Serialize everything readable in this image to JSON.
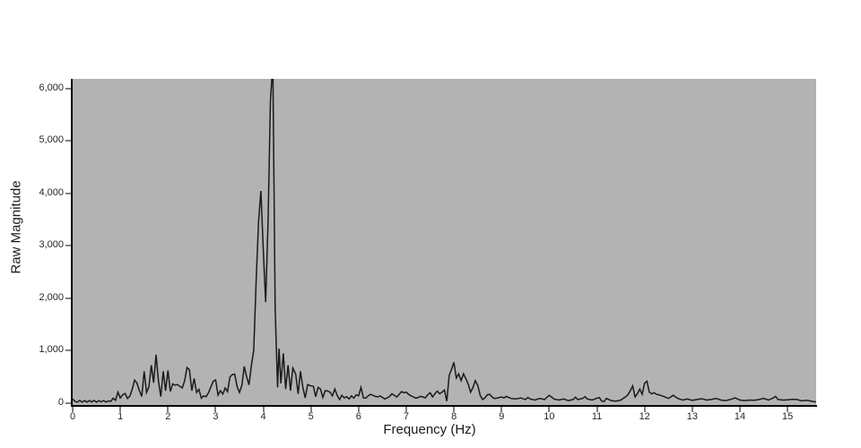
{
  "chart_data": {
    "type": "line",
    "title": "",
    "xlabel": "Frequency (Hz)",
    "ylabel": "Raw Magnitude",
    "xlim": [
      0,
      15.6
    ],
    "ylim": [
      0,
      6188
    ],
    "grid": false,
    "legend": false,
    "plot_bg_color": "#b3b3b3",
    "line_color": "#1a1a1a",
    "axis_color": "#000000",
    "tick_color": "#808080",
    "text_color": "#262626",
    "x_ticks": [
      {
        "value": 0,
        "label": "0"
      },
      {
        "value": 1,
        "label": "1"
      },
      {
        "value": 2,
        "label": "2"
      },
      {
        "value": 3,
        "label": "3"
      },
      {
        "value": 4,
        "label": "4"
      },
      {
        "value": 5,
        "label": "5"
      },
      {
        "value": 6,
        "label": "6"
      },
      {
        "value": 7,
        "label": "7"
      },
      {
        "value": 8,
        "label": "8"
      },
      {
        "value": 9,
        "label": "9"
      },
      {
        "value": 10,
        "label": "10"
      },
      {
        "value": 11,
        "label": "11"
      },
      {
        "value": 12,
        "label": "12"
      },
      {
        "value": 13,
        "label": "13"
      },
      {
        "value": 14,
        "label": "14"
      },
      {
        "value": 15,
        "label": "15"
      }
    ],
    "y_ticks": [
      {
        "value": 0,
        "label": "0"
      },
      {
        "value": 1000,
        "label": "1,000"
      },
      {
        "value": 2000,
        "label": "2,000"
      },
      {
        "value": 3000,
        "label": "3,000"
      },
      {
        "value": 4000,
        "label": "4,000"
      },
      {
        "value": 5000,
        "label": "5,000"
      },
      {
        "value": 6000,
        "label": "6,000"
      }
    ],
    "peak_clipped_at_x": 4.2,
    "points": [
      [
        0.0,
        80
      ],
      [
        0.05,
        35
      ],
      [
        0.1,
        20
      ],
      [
        0.15,
        55
      ],
      [
        0.2,
        18
      ],
      [
        0.25,
        52
      ],
      [
        0.3,
        20
      ],
      [
        0.35,
        50
      ],
      [
        0.4,
        22
      ],
      [
        0.45,
        55
      ],
      [
        0.5,
        20
      ],
      [
        0.55,
        48
      ],
      [
        0.6,
        25
      ],
      [
        0.65,
        52
      ],
      [
        0.7,
        20
      ],
      [
        0.75,
        45
      ],
      [
        0.8,
        35
      ],
      [
        0.85,
        95
      ],
      [
        0.9,
        55
      ],
      [
        0.95,
        210
      ],
      [
        1.0,
        100
      ],
      [
        1.05,
        160
      ],
      [
        1.1,
        185
      ],
      [
        1.15,
        90
      ],
      [
        1.2,
        135
      ],
      [
        1.25,
        265
      ],
      [
        1.3,
        440
      ],
      [
        1.35,
        385
      ],
      [
        1.4,
        240
      ],
      [
        1.45,
        130
      ],
      [
        1.5,
        610
      ],
      [
        1.55,
        205
      ],
      [
        1.6,
        310
      ],
      [
        1.65,
        725
      ],
      [
        1.7,
        390
      ],
      [
        1.75,
        925
      ],
      [
        1.8,
        420
      ],
      [
        1.85,
        125
      ],
      [
        1.9,
        610
      ],
      [
        1.95,
        240
      ],
      [
        2.0,
        625
      ],
      [
        2.05,
        225
      ],
      [
        2.1,
        370
      ],
      [
        2.15,
        345
      ],
      [
        2.2,
        355
      ],
      [
        2.25,
        320
      ],
      [
        2.3,
        290
      ],
      [
        2.35,
        430
      ],
      [
        2.4,
        680
      ],
      [
        2.45,
        640
      ],
      [
        2.5,
        240
      ],
      [
        2.55,
        470
      ],
      [
        2.6,
        205
      ],
      [
        2.65,
        265
      ],
      [
        2.7,
        95
      ],
      [
        2.75,
        140
      ],
      [
        2.8,
        125
      ],
      [
        2.85,
        200
      ],
      [
        2.9,
        310
      ],
      [
        2.95,
        420
      ],
      [
        3.0,
        445
      ],
      [
        3.05,
        155
      ],
      [
        3.1,
        240
      ],
      [
        3.15,
        175
      ],
      [
        3.2,
        290
      ],
      [
        3.25,
        220
      ],
      [
        3.3,
        500
      ],
      [
        3.35,
        545
      ],
      [
        3.4,
        555
      ],
      [
        3.45,
        320
      ],
      [
        3.5,
        205
      ],
      [
        3.55,
        340
      ],
      [
        3.6,
        700
      ],
      [
        3.65,
        500
      ],
      [
        3.7,
        350
      ],
      [
        3.75,
        720
      ],
      [
        3.8,
        1010
      ],
      [
        3.85,
        2330
      ],
      [
        3.9,
        3470
      ],
      [
        3.95,
        4050
      ],
      [
        4.0,
        2900
      ],
      [
        4.05,
        1930
      ],
      [
        4.1,
        3470
      ],
      [
        4.15,
        5760
      ],
      [
        4.2,
        6500
      ],
      [
        4.25,
        1810
      ],
      [
        4.3,
        300
      ],
      [
        4.33,
        1040
      ],
      [
        4.37,
        380
      ],
      [
        4.42,
        950
      ],
      [
        4.47,
        270
      ],
      [
        4.52,
        725
      ],
      [
        4.57,
        240
      ],
      [
        4.62,
        670
      ],
      [
        4.68,
        555
      ],
      [
        4.73,
        180
      ],
      [
        4.78,
        610
      ],
      [
        4.83,
        300
      ],
      [
        4.88,
        100
      ],
      [
        4.93,
        355
      ],
      [
        5.0,
        330
      ],
      [
        5.05,
        325
      ],
      [
        5.1,
        125
      ],
      [
        5.15,
        300
      ],
      [
        5.2,
        270
      ],
      [
        5.25,
        110
      ],
      [
        5.3,
        240
      ],
      [
        5.35,
        230
      ],
      [
        5.4,
        210
      ],
      [
        5.45,
        140
      ],
      [
        5.5,
        270
      ],
      [
        5.55,
        150
      ],
      [
        5.6,
        70
      ],
      [
        5.65,
        150
      ],
      [
        5.7,
        100
      ],
      [
        5.75,
        125
      ],
      [
        5.8,
        80
      ],
      [
        5.85,
        140
      ],
      [
        5.9,
        95
      ],
      [
        5.95,
        160
      ],
      [
        6.0,
        140
      ],
      [
        6.05,
        300
      ],
      [
        6.1,
        100
      ],
      [
        6.15,
        95
      ],
      [
        6.2,
        140
      ],
      [
        6.25,
        170
      ],
      [
        6.3,
        150
      ],
      [
        6.35,
        130
      ],
      [
        6.4,
        120
      ],
      [
        6.45,
        140
      ],
      [
        6.5,
        110
      ],
      [
        6.55,
        80
      ],
      [
        6.6,
        100
      ],
      [
        6.65,
        130
      ],
      [
        6.7,
        180
      ],
      [
        6.75,
        150
      ],
      [
        6.8,
        120
      ],
      [
        6.85,
        170
      ],
      [
        6.9,
        220
      ],
      [
        6.95,
        200
      ],
      [
        7.0,
        210
      ],
      [
        7.05,
        170
      ],
      [
        7.1,
        140
      ],
      [
        7.15,
        120
      ],
      [
        7.2,
        95
      ],
      [
        7.25,
        110
      ],
      [
        7.3,
        130
      ],
      [
        7.35,
        120
      ],
      [
        7.4,
        100
      ],
      [
        7.45,
        160
      ],
      [
        7.5,
        200
      ],
      [
        7.55,
        120
      ],
      [
        7.6,
        180
      ],
      [
        7.65,
        230
      ],
      [
        7.7,
        180
      ],
      [
        7.75,
        210
      ],
      [
        7.8,
        250
      ],
      [
        7.85,
        40
      ],
      [
        7.9,
        530
      ],
      [
        7.95,
        650
      ],
      [
        8.0,
        780
      ],
      [
        8.05,
        480
      ],
      [
        8.1,
        560
      ],
      [
        8.15,
        430
      ],
      [
        8.2,
        560
      ],
      [
        8.25,
        470
      ],
      [
        8.3,
        360
      ],
      [
        8.35,
        210
      ],
      [
        8.4,
        300
      ],
      [
        8.45,
        430
      ],
      [
        8.5,
        340
      ],
      [
        8.55,
        150
      ],
      [
        8.6,
        70
      ],
      [
        8.65,
        100
      ],
      [
        8.7,
        160
      ],
      [
        8.75,
        170
      ],
      [
        8.8,
        120
      ],
      [
        8.85,
        90
      ],
      [
        8.9,
        95
      ],
      [
        8.95,
        110
      ],
      [
        9.0,
        120
      ],
      [
        9.05,
        100
      ],
      [
        9.1,
        130
      ],
      [
        9.15,
        110
      ],
      [
        9.2,
        90
      ],
      [
        9.3,
        80
      ],
      [
        9.4,
        100
      ],
      [
        9.5,
        70
      ],
      [
        9.55,
        110
      ],
      [
        9.6,
        80
      ],
      [
        9.7,
        60
      ],
      [
        9.8,
        90
      ],
      [
        9.9,
        70
      ],
      [
        10.0,
        150
      ],
      [
        10.1,
        80
      ],
      [
        10.2,
        60
      ],
      [
        10.3,
        80
      ],
      [
        10.4,
        50
      ],
      [
        10.5,
        70
      ],
      [
        10.55,
        115
      ],
      [
        10.6,
        70
      ],
      [
        10.7,
        90
      ],
      [
        10.75,
        125
      ],
      [
        10.8,
        80
      ],
      [
        10.9,
        60
      ],
      [
        11.0,
        95
      ],
      [
        11.05,
        110
      ],
      [
        11.1,
        40
      ],
      [
        11.15,
        30
      ],
      [
        11.2,
        90
      ],
      [
        11.3,
        50
      ],
      [
        11.4,
        40
      ],
      [
        11.5,
        60
      ],
      [
        11.6,
        120
      ],
      [
        11.65,
        160
      ],
      [
        11.7,
        240
      ],
      [
        11.75,
        330
      ],
      [
        11.8,
        120
      ],
      [
        11.85,
        180
      ],
      [
        11.9,
        270
      ],
      [
        11.95,
        170
      ],
      [
        12.0,
        380
      ],
      [
        12.05,
        420
      ],
      [
        12.1,
        210
      ],
      [
        12.15,
        180
      ],
      [
        12.2,
        200
      ],
      [
        12.25,
        170
      ],
      [
        12.3,
        160
      ],
      [
        12.4,
        130
      ],
      [
        12.5,
        90
      ],
      [
        12.6,
        150
      ],
      [
        12.7,
        90
      ],
      [
        12.8,
        60
      ],
      [
        12.9,
        80
      ],
      [
        13.0,
        55
      ],
      [
        13.1,
        70
      ],
      [
        13.2,
        85
      ],
      [
        13.3,
        60
      ],
      [
        13.4,
        70
      ],
      [
        13.5,
        90
      ],
      [
        13.6,
        60
      ],
      [
        13.7,
        50
      ],
      [
        13.8,
        70
      ],
      [
        13.9,
        100
      ],
      [
        14.0,
        60
      ],
      [
        14.1,
        50
      ],
      [
        14.2,
        60
      ],
      [
        14.3,
        55
      ],
      [
        14.4,
        70
      ],
      [
        14.5,
        90
      ],
      [
        14.6,
        60
      ],
      [
        14.7,
        100
      ],
      [
        14.75,
        130
      ],
      [
        14.8,
        70
      ],
      [
        14.9,
        60
      ],
      [
        15.0,
        65
      ],
      [
        15.1,
        75
      ],
      [
        15.2,
        70
      ],
      [
        15.3,
        45
      ],
      [
        15.4,
        55
      ],
      [
        15.5,
        40
      ],
      [
        15.55,
        30
      ],
      [
        15.6,
        25
      ]
    ]
  }
}
